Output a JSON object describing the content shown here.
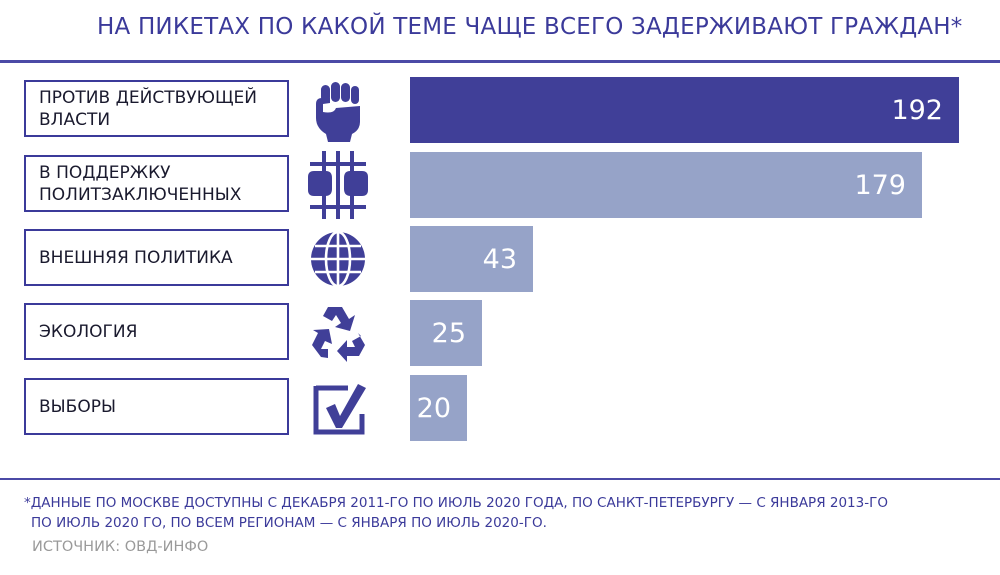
{
  "title": "НА ПИКЕТАХ ПО КАКОЙ ТЕМЕ ЧАЩЕ ВСЕГО ЗАДЕРЖИВАЮТ ГРАЖДАН*",
  "chart_data": {
    "type": "bar",
    "orientation": "horizontal",
    "categories": [
      "ПРОТИВ ДЕЙСТВУЮЩЕЙ ВЛАСТИ",
      "В ПОДДЕРЖКУ ПОЛИТЗАКЛЮЧЕННЫХ",
      "ВНЕШНЯЯ ПОЛИТИКА",
      "ЭКОЛОГИЯ",
      "ВЫБОРЫ"
    ],
    "values": [
      192,
      179,
      43,
      25,
      20
    ],
    "label_lines": [
      [
        "ПРОТИВ ДЕЙСТВУЮЩЕЙ",
        "ВЛАСТИ"
      ],
      [
        "В ПОДДЕРЖКУ",
        "ПОЛИТЗАКЛЮЧЕННЫХ"
      ],
      [
        "ВНЕШНЯЯ ПОЛИТИКА"
      ],
      [
        "ЭКОЛОГИЯ"
      ],
      [
        "ВЫБОРЫ"
      ]
    ],
    "icons": [
      "fist-icon",
      "prison-bars-icon",
      "globe-icon",
      "recycle-icon",
      "checkbox-icon"
    ],
    "bar_colors": [
      "#403f98",
      "#96a3c8",
      "#96a3c8",
      "#96a3c8",
      "#96a3c8"
    ],
    "xlim": [
      0,
      200
    ],
    "grid": false,
    "data_labels": true
  },
  "colors": {
    "accent": "#3b3a9a",
    "bar_highlight": "#403f98",
    "bar_normal": "#96a3c8",
    "source_text": "#9a9a9a"
  },
  "footnote": {
    "line1": "*ДАННЫЕ ПО МОСКВЕ ДОСТУПНЫ С ДЕКАБРЯ 2011-ГО ПО ИЮЛЬ 2020 ГОДА, ПО САНКТ-ПЕТЕРБУРГУ — С ЯНВАРЯ 2013-ГО",
    "line2": "ПО ИЮЛЬ 2020 ГО, ПО ВСЕМ РЕГИОНАМ — С ЯНВАРЯ ПО ИЮЛЬ 2020-ГО."
  },
  "source": "ИСТОЧНИК: ОВД-ИНФО"
}
